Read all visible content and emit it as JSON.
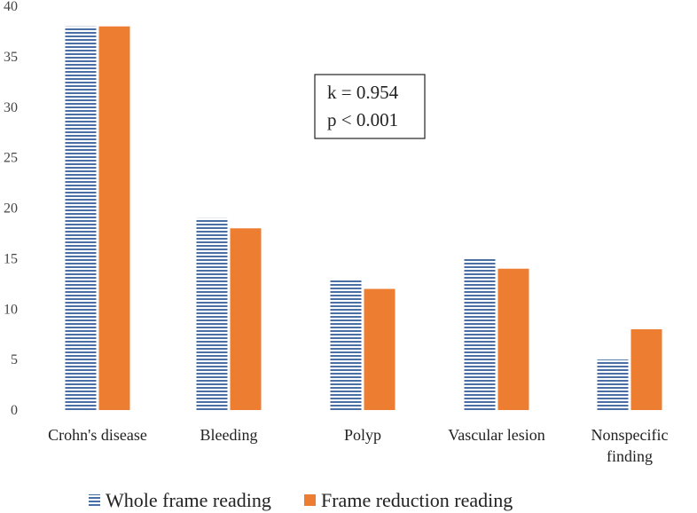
{
  "chart_data": {
    "type": "bar",
    "categories": [
      [
        "Crohn's disease"
      ],
      [
        "Bleeding"
      ],
      [
        "Polyp"
      ],
      [
        "Vascular lesion"
      ],
      [
        "Nonspecific",
        "finding"
      ]
    ],
    "series": [
      {
        "name": "Whole frame reading",
        "values": [
          38,
          19,
          13,
          15,
          5
        ],
        "color": "#4a6fa5",
        "pattern": "horizontal-stripes"
      },
      {
        "name": "Frame reduction reading",
        "values": [
          38,
          18,
          12,
          14,
          8
        ],
        "color": "#ed7d31",
        "pattern": "solid"
      }
    ],
    "yticks": [
      "0",
      "5",
      "10",
      "15",
      "20",
      "25",
      "30",
      "35",
      "40"
    ],
    "ylim": [
      0,
      40
    ],
    "grid": false,
    "legend_position": "bottom",
    "annotation": {
      "lines": [
        "k = 0.954",
        "p < 0.001"
      ]
    },
    "title": "",
    "xlabel": "",
    "ylabel": ""
  }
}
